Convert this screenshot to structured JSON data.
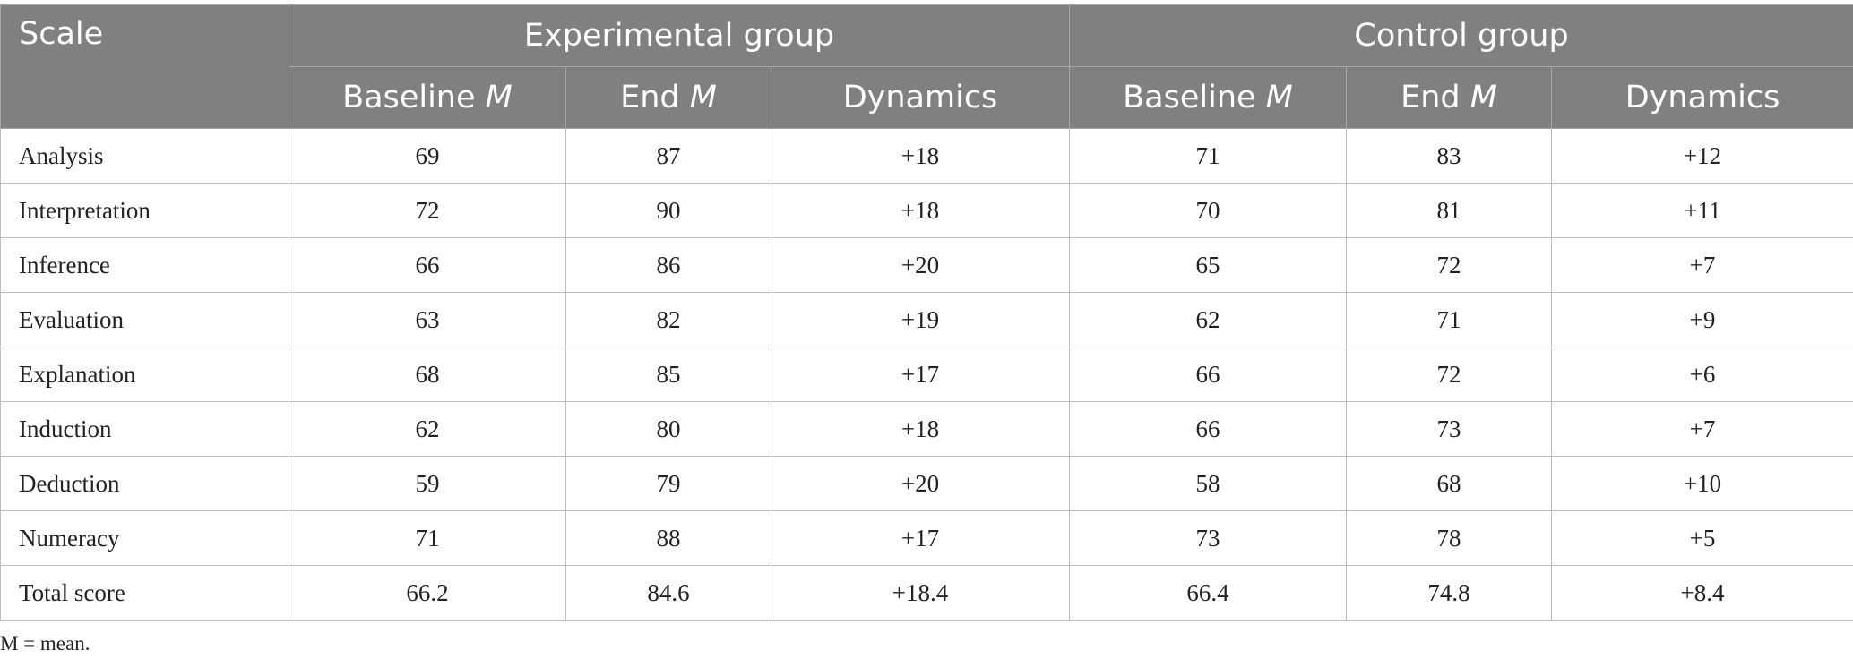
{
  "table": {
    "scale_header": "Scale",
    "groups": [
      "Experimental group",
      "Control group"
    ],
    "subheaders": [
      {
        "label": "Baseline ",
        "italic": "M"
      },
      {
        "label": "End ",
        "italic": "M"
      },
      {
        "label": "Dynamics",
        "italic": ""
      },
      {
        "label": "Baseline ",
        "italic": "M"
      },
      {
        "label": "End ",
        "italic": "M"
      },
      {
        "label": "Dynamics",
        "italic": ""
      }
    ],
    "rows": [
      [
        "Analysis",
        "69",
        "87",
        "+18",
        "71",
        "83",
        "+12"
      ],
      [
        "Interpretation",
        "72",
        "90",
        "+18",
        "70",
        "81",
        "+11"
      ],
      [
        "Inference",
        "66",
        "86",
        "+20",
        "65",
        "72",
        "+7"
      ],
      [
        "Evaluation",
        "63",
        "82",
        "+19",
        "62",
        "71",
        "+9"
      ],
      [
        "Explanation",
        "68",
        "85",
        "+17",
        "66",
        "72",
        "+6"
      ],
      [
        "Induction",
        "62",
        "80",
        "+18",
        "66",
        "73",
        "+7"
      ],
      [
        "Deduction",
        "59",
        "79",
        "+20",
        "58",
        "68",
        "+10"
      ],
      [
        "Numeracy",
        "71",
        "88",
        "+17",
        "73",
        "78",
        "+5"
      ],
      [
        "Total score",
        "66.2",
        "84.6",
        "+18.4",
        "66.4",
        "74.8",
        "+8.4"
      ]
    ]
  },
  "footnote": "M = mean."
}
